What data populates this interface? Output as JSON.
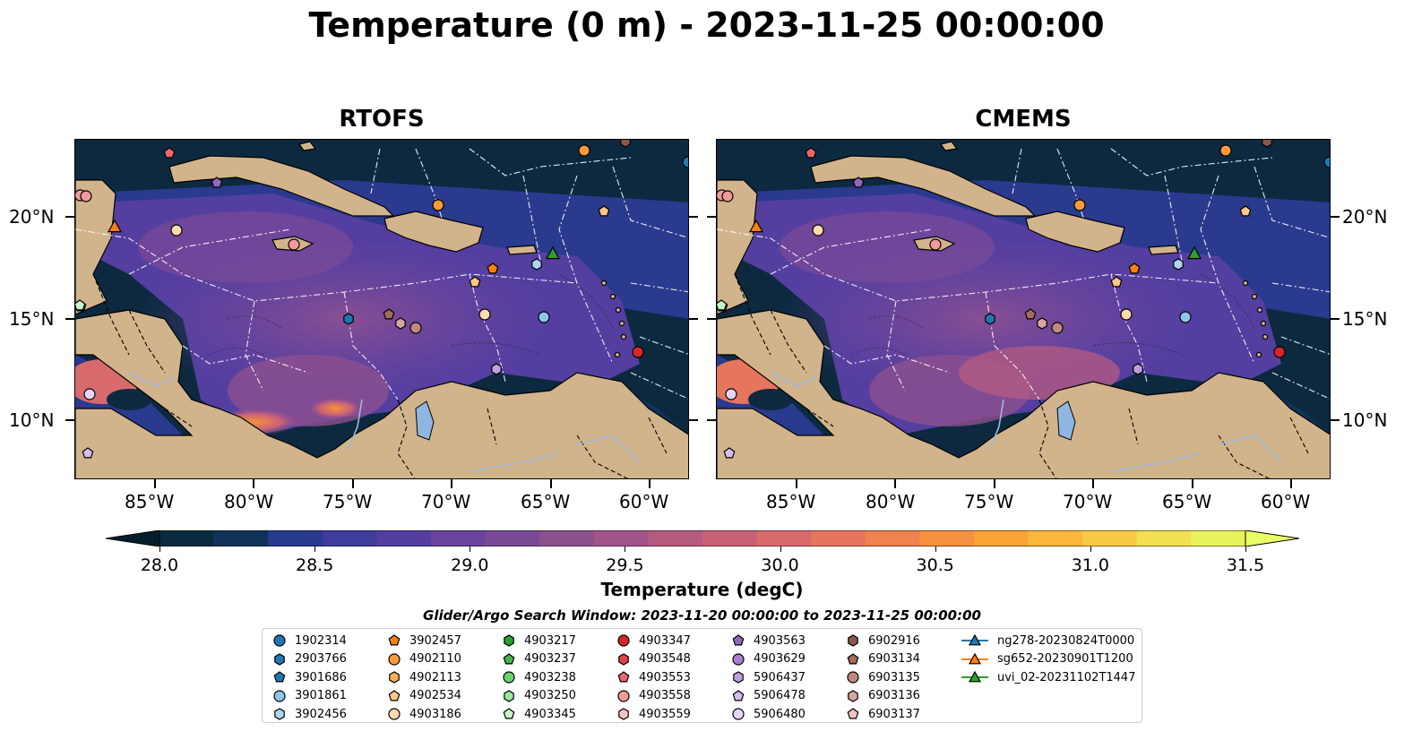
{
  "figure_title": "Temperature (0 m) - 2023-11-25 00:00:00",
  "panels": [
    {
      "title": "RTOFS"
    },
    {
      "title": "CMEMS"
    }
  ],
  "axes": {
    "lat_ticks": [
      "20°N",
      "15°N",
      "10°N"
    ],
    "lon_ticks": [
      "85°W",
      "80°W",
      "75°W",
      "70°W",
      "65°W",
      "60°W"
    ]
  },
  "colorbar": {
    "label": "Temperature (degC)",
    "ticks": [
      "28.0",
      "28.5",
      "29.0",
      "29.5",
      "30.0",
      "30.5",
      "31.0",
      "31.5"
    ],
    "range": [
      28.0,
      31.5
    ],
    "extend": "both",
    "colors": [
      "#0a2a3e",
      "#10335a",
      "#2a3a8e",
      "#3f3c9c",
      "#543fa0",
      "#68449e",
      "#7a4a97",
      "#8d508f",
      "#a15588",
      "#b55b80",
      "#c86278",
      "#d96a6c",
      "#e6755d",
      "#ef824e",
      "#f5913f",
      "#f9a337",
      "#fbb73a",
      "#f9cb45",
      "#f3e052",
      "#e8f25d"
    ],
    "under_color": "#041f2c",
    "over_color": "#eafe64"
  },
  "search_window": "Glider/Argo Search Window: 2023-11-20 00:00:00 to 2023-11-25 00:00:00",
  "legend": [
    {
      "label": "1902314",
      "marker": "circle",
      "color": "#1f77b4"
    },
    {
      "label": "2903766",
      "marker": "hexagon",
      "color": "#1f77b4"
    },
    {
      "label": "3901686",
      "marker": "pentagon",
      "color": "#1f77b4"
    },
    {
      "label": "3901861",
      "marker": "circle",
      "color": "#8ec6e8"
    },
    {
      "label": "3902456",
      "marker": "hexagon",
      "color": "#aed6f1"
    },
    {
      "label": "3902457",
      "marker": "pentagon",
      "color": "#ff7f0e"
    },
    {
      "label": "4902110",
      "marker": "circle",
      "color": "#ff9a3c"
    },
    {
      "label": "4902113",
      "marker": "hexagon",
      "color": "#ffae5e"
    },
    {
      "label": "4902534",
      "marker": "pentagon",
      "color": "#ffc78a"
    },
    {
      "label": "4903186",
      "marker": "circle",
      "color": "#ffd9b0"
    },
    {
      "label": "4903217",
      "marker": "hexagon",
      "color": "#2ca02c"
    },
    {
      "label": "4903237",
      "marker": "pentagon",
      "color": "#4bb34b"
    },
    {
      "label": "4903238",
      "marker": "circle",
      "color": "#6ad06a"
    },
    {
      "label": "4903250",
      "marker": "hexagon",
      "color": "#98e698"
    },
    {
      "label": "4903345",
      "marker": "pentagon",
      "color": "#c8f5c8"
    },
    {
      "label": "4903347",
      "marker": "circle",
      "color": "#d62728"
    },
    {
      "label": "4903548",
      "marker": "hexagon",
      "color": "#e04446"
    },
    {
      "label": "4903553",
      "marker": "pentagon",
      "color": "#e8676a"
    },
    {
      "label": "4903558",
      "marker": "circle",
      "color": "#f09a9b"
    },
    {
      "label": "4903559",
      "marker": "hexagon",
      "color": "#f7c4c4"
    },
    {
      "label": "4903563",
      "marker": "pentagon",
      "color": "#9467bd"
    },
    {
      "label": "4903629",
      "marker": "circle",
      "color": "#a97fcf"
    },
    {
      "label": "5906437",
      "marker": "hexagon",
      "color": "#bfa0de"
    },
    {
      "label": "5906478",
      "marker": "pentagon",
      "color": "#d4bdf0"
    },
    {
      "label": "5906480",
      "marker": "circle",
      "color": "#e6d5fa"
    },
    {
      "label": "6902916",
      "marker": "hexagon",
      "color": "#8c564b"
    },
    {
      "label": "6903134",
      "marker": "pentagon",
      "color": "#a46b5f"
    },
    {
      "label": "6903135",
      "marker": "circle",
      "color": "#c08a80"
    },
    {
      "label": "6903136",
      "marker": "hexagon",
      "color": "#d7a79f"
    },
    {
      "label": "6903137",
      "marker": "pentagon",
      "color": "#f2c6c0"
    },
    {
      "label": "ng278-20230824T0000",
      "marker": "triangle-line",
      "color": "#1f77b4"
    },
    {
      "label": "sg652-20230901T1200",
      "marker": "triangle-line",
      "color": "#ff7f0e"
    },
    {
      "label": "uvi_02-20231102T1447",
      "marker": "triangle-line",
      "color": "#2ca02c"
    }
  ]
}
